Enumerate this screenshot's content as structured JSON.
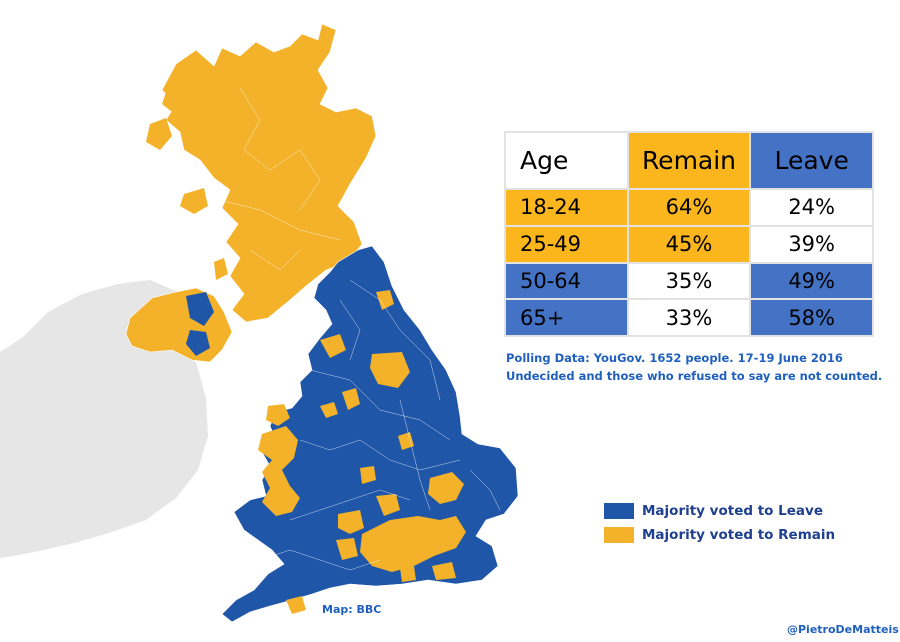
{
  "colors": {
    "leave": "#1f56a8",
    "remain": "#f3b229",
    "table_leave": "#4472c4",
    "table_remain": "#fbb61d",
    "ireland": "#e6e6e6",
    "text_blue": "#1f5fbf"
  },
  "table": {
    "headers": {
      "age": "Age",
      "remain": "Remain",
      "leave": "Leave"
    },
    "rows": [
      {
        "age": "18-24",
        "remain": "64%",
        "leave": "24%",
        "majority": "remain"
      },
      {
        "age": "25-49",
        "remain": "45%",
        "leave": "39%",
        "majority": "remain"
      },
      {
        "age": "50-64",
        "remain": "35%",
        "leave": "49%",
        "majority": "leave"
      },
      {
        "age": "65+",
        "remain": "33%",
        "leave": "58%",
        "majority": "leave"
      }
    ]
  },
  "note": {
    "line1": "Polling Data: YouGov. 1652 people. 17-19 June 2016",
    "line2": "Undecided and those who refused to say are not counted."
  },
  "legend": {
    "leave_label": "Majority voted to Leave",
    "remain_label": "Majority voted to Remain"
  },
  "credits": {
    "map": "Map: BBC",
    "author": "@PietroDeMatteis"
  }
}
